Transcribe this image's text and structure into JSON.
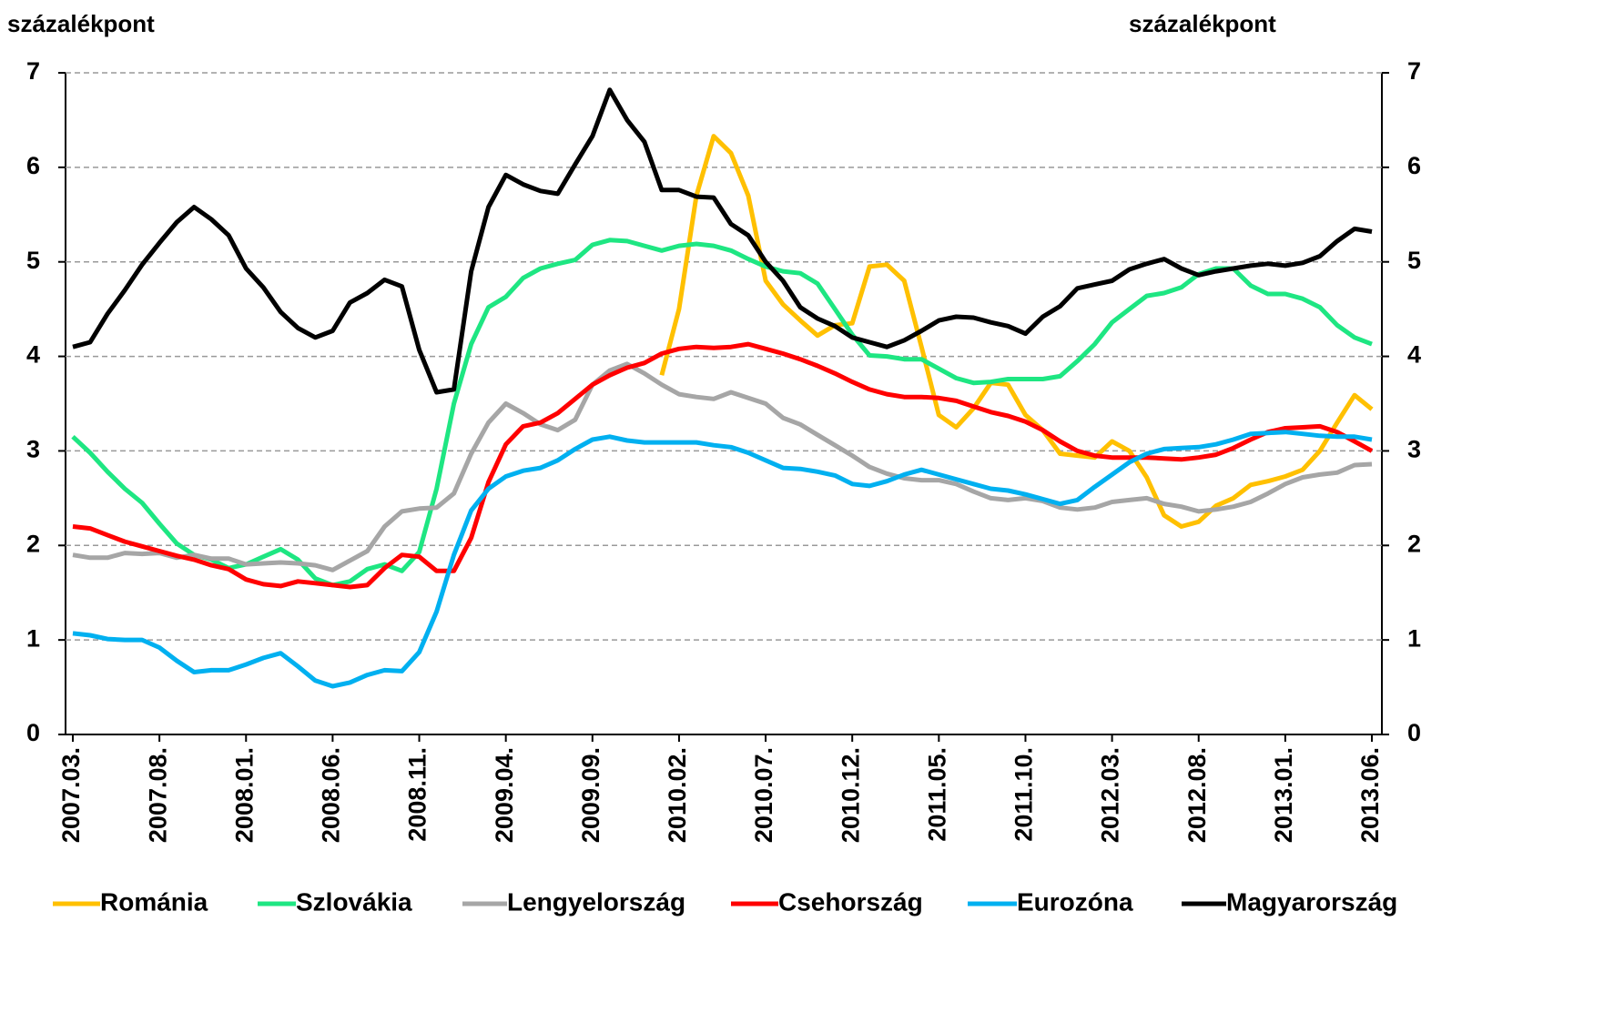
{
  "chart_data": {
    "type": "line",
    "y_label": "százalékpont",
    "y2_label": "százalékpont",
    "categories": [
      "2007.03.",
      null,
      null,
      null,
      null,
      "2007.08.",
      null,
      null,
      null,
      null,
      "2008.01.",
      null,
      null,
      null,
      null,
      "2008.06.",
      null,
      null,
      null,
      null,
      "2008.11.",
      null,
      null,
      null,
      null,
      "2009.04.",
      null,
      null,
      null,
      null,
      "2009.09.",
      null,
      null,
      null,
      null,
      "2010.02.",
      null,
      null,
      null,
      null,
      "2010.07.",
      null,
      null,
      null,
      null,
      "2010.12.",
      null,
      null,
      null,
      null,
      "2011.05.",
      null,
      null,
      null,
      null,
      "2011.10.",
      null,
      null,
      null,
      null,
      "2012.03.",
      null,
      null,
      null,
      null,
      "2012.08.",
      null,
      null,
      null,
      null,
      "2013.01.",
      null,
      null,
      null,
      null,
      "2013.06."
    ],
    "ylim": [
      0,
      7
    ],
    "yticks": [
      0,
      1,
      2,
      3,
      4,
      5,
      6,
      7
    ],
    "y2lim": [
      0,
      7
    ],
    "y2ticks": [
      0,
      1,
      2,
      3,
      4,
      5,
      6,
      7
    ],
    "grid": true,
    "legend": "bottom",
    "series": [
      {
        "name": "Románia",
        "color": "#ffc000",
        "values": [
          null,
          null,
          null,
          null,
          null,
          null,
          null,
          null,
          null,
          null,
          null,
          null,
          null,
          null,
          null,
          null,
          null,
          null,
          null,
          null,
          null,
          null,
          null,
          null,
          null,
          null,
          null,
          null,
          null,
          null,
          null,
          null,
          null,
          null,
          3.8,
          4.5,
          5.7,
          6.33,
          6.15,
          5.7,
          4.8,
          4.55,
          4.38,
          4.22,
          4.33,
          4.35,
          4.95,
          4.97,
          4.8,
          4.1,
          3.38,
          3.25,
          3.45,
          3.72,
          3.7,
          3.38,
          3.22,
          2.97,
          2.95,
          2.93,
          3.1,
          3.0,
          2.72,
          2.32,
          2.2,
          2.25,
          2.42,
          2.5,
          2.64,
          2.68,
          2.73,
          2.8,
          3.0,
          3.3,
          3.59,
          3.44
        ]
      },
      {
        "name": "Szlovákia",
        "color": "#1ee682",
        "values": [
          3.15,
          2.98,
          2.78,
          2.6,
          2.45,
          2.23,
          2.02,
          1.9,
          1.85,
          1.76,
          1.8,
          1.88,
          1.96,
          1.85,
          1.65,
          1.58,
          1.62,
          1.75,
          1.8,
          1.73,
          1.93,
          2.6,
          3.5,
          4.13,
          4.52,
          4.63,
          4.83,
          4.93,
          4.98,
          5.02,
          5.18,
          5.23,
          5.22,
          5.17,
          5.12,
          5.17,
          5.19,
          5.17,
          5.12,
          5.03,
          4.95,
          4.9,
          4.88,
          4.77,
          4.5,
          4.23,
          4.01,
          4.0,
          3.97,
          3.97,
          3.87,
          3.77,
          3.72,
          3.73,
          3.76,
          3.76,
          3.76,
          3.79,
          3.95,
          4.13,
          4.36,
          4.5,
          4.64,
          4.67,
          4.73,
          4.87,
          4.93,
          4.93,
          4.75,
          4.66,
          4.66,
          4.61,
          4.52,
          4.33,
          4.2,
          4.13
        ]
      },
      {
        "name": "Lengyelország",
        "color": "#a6a6a6",
        "values": [
          1.9,
          1.87,
          1.87,
          1.92,
          1.91,
          1.92,
          1.87,
          1.9,
          1.86,
          1.86,
          1.8,
          1.81,
          1.82,
          1.81,
          1.79,
          1.74,
          1.84,
          1.94,
          2.2,
          2.36,
          2.39,
          2.4,
          2.55,
          2.97,
          3.3,
          3.5,
          3.4,
          3.28,
          3.22,
          3.33,
          3.7,
          3.85,
          3.92,
          3.82,
          3.7,
          3.6,
          3.57,
          3.55,
          3.62,
          3.56,
          3.5,
          3.35,
          3.28,
          3.17,
          3.06,
          2.95,
          2.83,
          2.76,
          2.71,
          2.69,
          2.69,
          2.65,
          2.57,
          2.5,
          2.48,
          2.5,
          2.47,
          2.4,
          2.38,
          2.4,
          2.46,
          2.48,
          2.5,
          2.44,
          2.41,
          2.36,
          2.38,
          2.41,
          2.46,
          2.55,
          2.65,
          2.72,
          2.75,
          2.77,
          2.85,
          2.86
        ]
      },
      {
        "name": "Csehország",
        "color": "#ff0000",
        "values": [
          2.2,
          2.18,
          2.11,
          2.04,
          1.99,
          1.94,
          1.89,
          1.85,
          1.79,
          1.75,
          1.64,
          1.59,
          1.57,
          1.62,
          1.6,
          1.58,
          1.56,
          1.58,
          1.76,
          1.9,
          1.88,
          1.73,
          1.73,
          2.08,
          2.67,
          3.07,
          3.26,
          3.3,
          3.4,
          3.55,
          3.7,
          3.8,
          3.88,
          3.93,
          4.03,
          4.08,
          4.1,
          4.09,
          4.1,
          4.13,
          4.08,
          4.03,
          3.97,
          3.9,
          3.82,
          3.73,
          3.65,
          3.6,
          3.57,
          3.57,
          3.56,
          3.53,
          3.47,
          3.41,
          3.37,
          3.31,
          3.22,
          3.1,
          3.0,
          2.95,
          2.93,
          2.93,
          2.93,
          2.92,
          2.91,
          2.93,
          2.96,
          3.03,
          3.12,
          3.2,
          3.24,
          3.25,
          3.26,
          3.2,
          3.1,
          3.0
        ]
      },
      {
        "name": "Eurozóna",
        "color": "#00b0f0",
        "values": [
          1.07,
          1.05,
          1.01,
          1.0,
          1.0,
          0.92,
          0.78,
          0.66,
          0.68,
          0.68,
          0.74,
          0.81,
          0.86,
          0.72,
          0.57,
          0.51,
          0.55,
          0.63,
          0.68,
          0.67,
          0.87,
          1.3,
          1.9,
          2.37,
          2.6,
          2.73,
          2.79,
          2.82,
          2.9,
          3.02,
          3.12,
          3.15,
          3.11,
          3.09,
          3.09,
          3.09,
          3.09,
          3.06,
          3.04,
          2.98,
          2.9,
          2.82,
          2.81,
          2.78,
          2.74,
          2.65,
          2.63,
          2.68,
          2.75,
          2.8,
          2.75,
          2.7,
          2.65,
          2.6,
          2.58,
          2.54,
          2.49,
          2.44,
          2.48,
          2.62,
          2.75,
          2.88,
          2.97,
          3.02,
          3.03,
          3.04,
          3.07,
          3.12,
          3.18,
          3.19,
          3.2,
          3.18,
          3.16,
          3.15,
          3.15,
          3.12
        ]
      },
      {
        "name": "Magyarország",
        "color": "#000000",
        "values": [
          4.1,
          4.15,
          4.45,
          4.7,
          4.97,
          5.2,
          5.42,
          5.58,
          5.45,
          5.28,
          4.93,
          4.73,
          4.47,
          4.3,
          4.2,
          4.27,
          4.57,
          4.67,
          4.81,
          4.74,
          4.07,
          3.62,
          3.65,
          4.9,
          5.58,
          5.92,
          5.82,
          5.75,
          5.72,
          6.03,
          6.33,
          6.82,
          6.5,
          6.27,
          5.76,
          5.76,
          5.69,
          5.68,
          5.4,
          5.28,
          5.0,
          4.8,
          4.52,
          4.4,
          4.32,
          4.2,
          4.15,
          4.1,
          4.17,
          4.27,
          4.38,
          4.42,
          4.41,
          4.36,
          4.32,
          4.24,
          4.42,
          4.53,
          4.72,
          4.76,
          4.8,
          4.92,
          4.98,
          5.03,
          4.93,
          4.86,
          4.9,
          4.93,
          4.96,
          4.98,
          4.96,
          4.99,
          5.06,
          5.22,
          5.35,
          5.32
        ]
      }
    ]
  }
}
